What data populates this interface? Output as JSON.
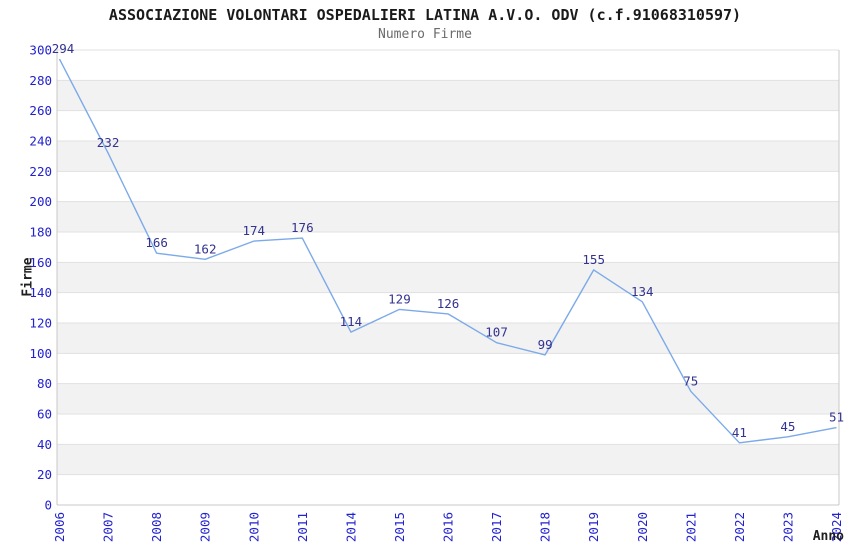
{
  "page": {
    "title": "ASSOCIAZIONE VOLONTARI OSPEDALIERI LATINA A.V.O. ODV (c.f.91068310597)",
    "subtitle": "Numero Firme"
  },
  "chart_data": {
    "type": "line",
    "title": "ASSOCIAZIONE VOLONTARI OSPEDALIERI LATINA A.V.O. ODV (c.f.91068310597)",
    "subtitle": "Numero Firme",
    "xlabel": "Anno",
    "ylabel": "Firme",
    "categories": [
      "2006",
      "2007",
      "2008",
      "2009",
      "2010",
      "2011",
      "2014",
      "2015",
      "2016",
      "2017",
      "2018",
      "2019",
      "2020",
      "2021",
      "2022",
      "2023",
      "2024"
    ],
    "series": [
      {
        "name": "Numero Firme",
        "values": [
          294,
          232,
          166,
          162,
          174,
          176,
          114,
          129,
          126,
          107,
          99,
          155,
          134,
          75,
          41,
          45,
          51
        ]
      }
    ],
    "point_labels_visible": true,
    "ylim": [
      0,
      300
    ],
    "ytick_step": 20,
    "legend": "none",
    "grid": "horizontal-gridlines-with-alternating-bands",
    "x_tick_rotation_degrees": 90,
    "colors": {
      "line": "#7caae9",
      "band_fill": "#f2f2f2",
      "gridline": "#e1e1e1",
      "axis_border": "#c8c8c8",
      "tick_label": "#2222cf",
      "data_label": "#333390",
      "title": "#1a1a1a",
      "subtitle": "#6b6b6b",
      "axis_title": "#1f1f1f"
    }
  }
}
